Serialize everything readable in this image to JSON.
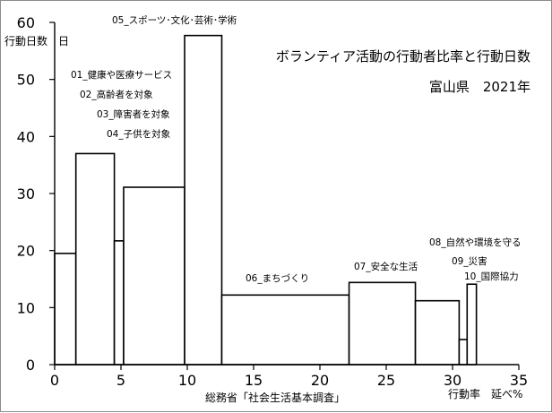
{
  "chart_data": {
    "type": "bar",
    "subtype": "variable-width",
    "title": "ボランティア活動の行動者比率と行動日数",
    "subtitle": "富山県　2021年",
    "ylabel": "行動日数　日",
    "xlabel": "行動率　延べ%",
    "source": "総務省「社会生活基本調査」",
    "xlim": [
      0,
      35
    ],
    "ylim": [
      0,
      60
    ],
    "xticks": [
      0,
      5,
      10,
      15,
      20,
      25,
      30,
      35
    ],
    "yticks": [
      0,
      10,
      20,
      30,
      40,
      50,
      60
    ],
    "grid": false,
    "bars": [
      {
        "label": "01_健康や医療サービス",
        "rate": 1.6,
        "days": 19.5
      },
      {
        "label": "02_高齢者を対象",
        "rate": 2.9,
        "days": 37.0
      },
      {
        "label": "03_障害者を対象",
        "rate": 0.7,
        "days": 21.7
      },
      {
        "label": "04_子供を対象",
        "rate": 4.6,
        "days": 31.1
      },
      {
        "label": "05_スポーツ･文化･芸術･学術",
        "rate": 2.8,
        "days": 57.7
      },
      {
        "label": "06_まちづくり",
        "rate": 9.6,
        "days": 12.2
      },
      {
        "label": "07_安全な生活",
        "rate": 5.0,
        "days": 14.4
      },
      {
        "label": "08_自然や環境を守る",
        "rate": 3.3,
        "days": 11.2
      },
      {
        "label": "09_災害",
        "rate": 0.6,
        "days": 4.4
      },
      {
        "label": "10_国際協力",
        "rate": 0.7,
        "days": 14.1
      }
    ]
  }
}
